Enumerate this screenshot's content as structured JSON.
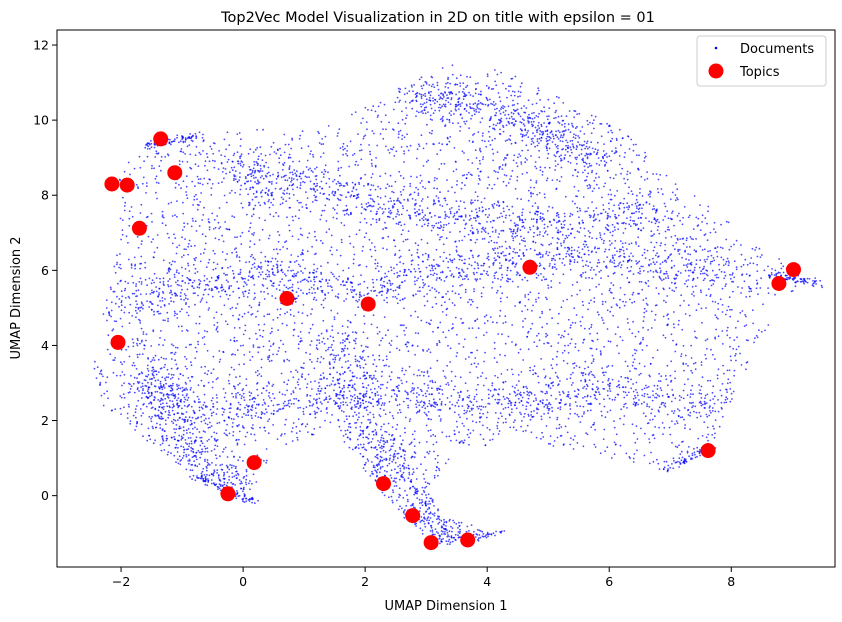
{
  "chart_data": {
    "type": "scatter",
    "title": "Top2Vec Model Visualization in 2D on title with epsilon = 01",
    "xlabel": "UMAP Dimension 1",
    "ylabel": "UMAP Dimension 2",
    "xlim": [
      -3.05,
      9.7
    ],
    "ylim": [
      -1.9,
      12.4
    ],
    "xticks": [
      -2,
      0,
      2,
      4,
      6,
      8
    ],
    "yticks": [
      0,
      2,
      4,
      6,
      8,
      10,
      12
    ],
    "legend_position": "top-right",
    "grid": false,
    "colors": {
      "documents": "#0000ff",
      "topics": "#ff0000"
    },
    "legend": [
      {
        "label": "Documents",
        "marker": "small-dot",
        "color": "#0000ff"
      },
      {
        "label": "Topics",
        "marker": "large-dot",
        "color": "#ff0000"
      }
    ],
    "series": [
      {
        "name": "Topics",
        "points": [
          [
            -2.15,
            8.3
          ],
          [
            -1.9,
            8.27
          ],
          [
            -1.35,
            9.5
          ],
          [
            -1.12,
            8.6
          ],
          [
            -1.7,
            7.12
          ],
          [
            -2.05,
            4.08
          ],
          [
            -0.25,
            0.05
          ],
          [
            0.18,
            0.88
          ],
          [
            0.72,
            5.25
          ],
          [
            2.05,
            5.1
          ],
          [
            2.3,
            0.32
          ],
          [
            2.78,
            -0.53
          ],
          [
            3.08,
            -1.25
          ],
          [
            3.68,
            -1.18
          ],
          [
            4.7,
            6.08
          ],
          [
            7.62,
            1.2
          ],
          [
            8.78,
            5.65
          ],
          [
            9.02,
            6.02
          ]
        ]
      },
      {
        "name": "Documents",
        "description_of_density": "dense cloud spanning x -2.4 to 9.4, y -1.2 to 11.7",
        "region_polygon": [
          [
            -2.4,
            4.1
          ],
          [
            -2.25,
            5.2
          ],
          [
            -2.0,
            7.0
          ],
          [
            -2.15,
            8.5
          ],
          [
            -1.5,
            9.4
          ],
          [
            -0.5,
            9.7
          ],
          [
            0.5,
            9.8
          ],
          [
            1.5,
            9.9
          ],
          [
            2.2,
            10.6
          ],
          [
            3.1,
            11.3
          ],
          [
            3.5,
            11.7
          ],
          [
            4.3,
            11.3
          ],
          [
            5.3,
            10.5
          ],
          [
            6.2,
            9.8
          ],
          [
            7.0,
            8.5
          ],
          [
            7.8,
            7.5
          ],
          [
            8.5,
            6.6
          ],
          [
            9.4,
            5.7
          ],
          [
            8.8,
            5.2
          ],
          [
            8.3,
            3.5
          ],
          [
            7.9,
            2.2
          ],
          [
            7.7,
            1.3
          ],
          [
            7.0,
            0.7
          ],
          [
            6.0,
            1.0
          ],
          [
            4.5,
            1.5
          ],
          [
            3.5,
            1.0
          ],
          [
            3.0,
            0.2
          ],
          [
            3.3,
            -0.6
          ],
          [
            4.3,
            -1.0
          ],
          [
            3.1,
            -1.3
          ],
          [
            2.7,
            -0.7
          ],
          [
            2.1,
            0.4
          ],
          [
            1.5,
            1.8
          ],
          [
            0.5,
            1.2
          ],
          [
            0.15,
            -0.2
          ],
          [
            -0.8,
            0.5
          ],
          [
            -1.7,
            1.6
          ],
          [
            -2.3,
            2.4
          ],
          [
            -2.45,
            3.2
          ]
        ],
        "dense_bands": [
          [
            [
              -1.9,
              5.1
            ],
            [
              0.0,
              6.0
            ],
            [
              2.0,
              5.5
            ],
            [
              4.0,
              6.2
            ],
            [
              6.0,
              6.3
            ],
            [
              8.0,
              6.0
            ]
          ],
          [
            [
              -1.8,
              2.8
            ],
            [
              0.0,
              2.3
            ],
            [
              2.0,
              2.8
            ],
            [
              4.0,
              2.4
            ],
            [
              6.0,
              2.8
            ],
            [
              8.0,
              2.4
            ]
          ],
          [
            [
              -0.5,
              9.0
            ],
            [
              1.0,
              8.2
            ],
            [
              3.0,
              7.5
            ],
            [
              5.0,
              7.2
            ],
            [
              7.0,
              7.6
            ]
          ],
          [
            [
              2.8,
              10.6
            ],
            [
              4.0,
              10.4
            ],
            [
              5.0,
              9.6
            ],
            [
              6.0,
              8.9
            ]
          ],
          [
            [
              1.5,
              4.3
            ],
            [
              1.9,
              2.3
            ],
            [
              2.4,
              0.8
            ],
            [
              2.9,
              -0.4
            ],
            [
              3.5,
              -1.1
            ]
          ],
          [
            [
              -1.5,
              3.5
            ],
            [
              -1.2,
              2.0
            ],
            [
              -0.7,
              0.8
            ],
            [
              -0.1,
              0.0
            ]
          ]
        ]
      }
    ]
  }
}
